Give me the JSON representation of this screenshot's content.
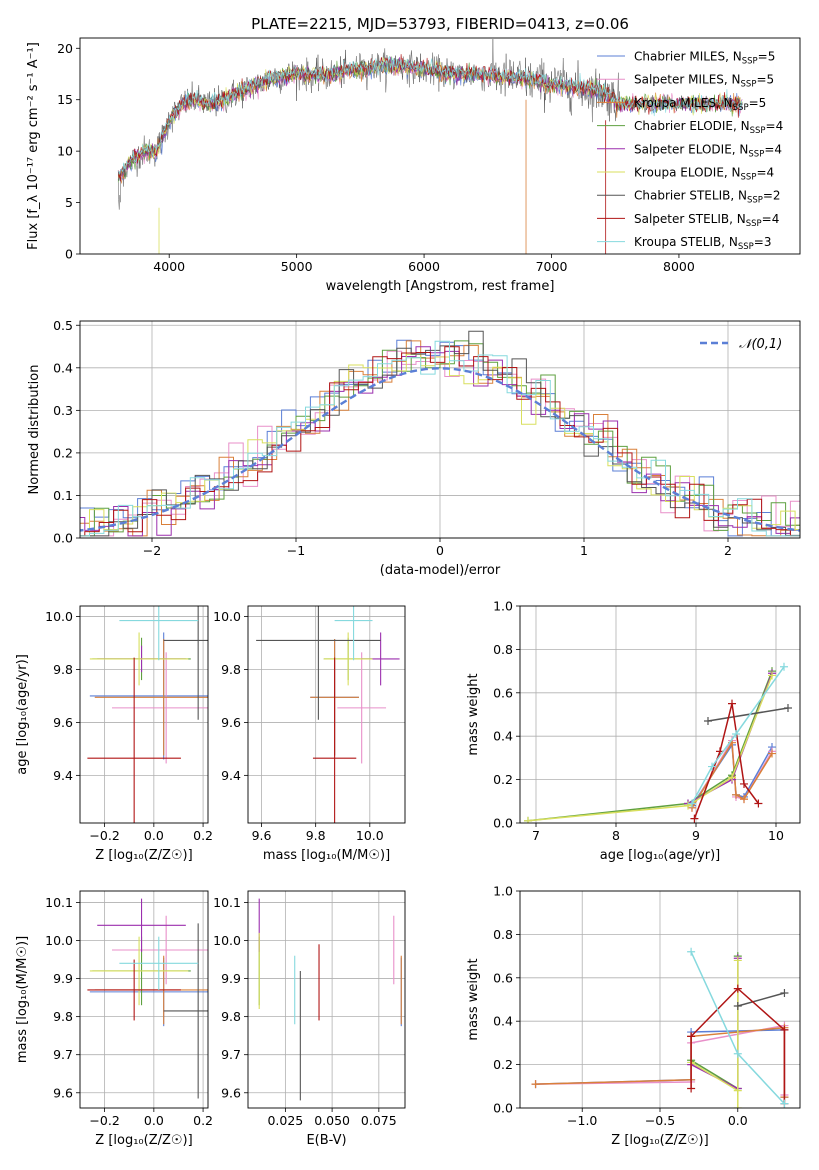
{
  "figure_title": "PLATE=2215, MJD=53793, FIBERID=0413, z=0.06",
  "colors": {
    "Chabrier MILES": "#5b7fd6",
    "Salpeter MILES": "#e88fc9",
    "Kroupa MILES": "#d9803a",
    "Chabrier ELODIE": "#5fa040",
    "Salpeter ELODIE": "#9b2fae",
    "Kroupa ELODIE": "#d8df5e",
    "Chabrier STELIB": "#555555",
    "Salpeter STELIB": "#b01515",
    "Kroupa STELIB": "#86d9de",
    "gaussian": "#5b7fd6",
    "grid": "#b0b0b0"
  },
  "chart_data": [
    {
      "id": "spectrum",
      "type": "line",
      "title": "PLATE=2215, MJD=53793, FIBERID=0413, z=0.06",
      "xlabel": "wavelength [Angstrom, rest frame]",
      "ylabel": "Flux [f_λ 10⁻¹⁷ erg cm⁻² s⁻¹ A⁻¹]",
      "xlim": [
        3300,
        8950
      ],
      "ylim": [
        0,
        21
      ],
      "xticks": [
        4000,
        5000,
        6000,
        7000,
        8000
      ],
      "yticks": [
        0,
        5,
        10,
        15,
        20
      ],
      "grid": false,
      "legend_loc": "right",
      "continuum_x": [
        3600,
        3700,
        3800,
        3900,
        4000,
        4100,
        4200,
        4300,
        4400,
        4500,
        4600,
        4700,
        4800,
        4900,
        5000,
        5200,
        5400,
        5600,
        5800,
        6000,
        6200,
        6400,
        6600,
        6800,
        7000,
        7200,
        7400,
        7500
      ],
      "continuum_y": [
        7.5,
        9.0,
        10.0,
        10.0,
        13.0,
        14.5,
        15.0,
        14.5,
        14.8,
        15.5,
        16.0,
        16.5,
        17.0,
        17.3,
        17.5,
        17.3,
        17.8,
        18.2,
        18.3,
        18.0,
        17.5,
        17.5,
        17.2,
        17.0,
        16.5,
        16.2,
        15.8,
        15.0
      ],
      "series": [
        {
          "name": "Chabrier MILES",
          "nssp": 5
        },
        {
          "name": "Salpeter MILES",
          "nssp": 5
        },
        {
          "name": "Kroupa MILES",
          "nssp": 5
        },
        {
          "name": "Chabrier ELODIE",
          "nssp": 4
        },
        {
          "name": "Salpeter ELODIE",
          "nssp": 4
        },
        {
          "name": "Kroupa ELODIE",
          "nssp": 4
        },
        {
          "name": "Chabrier STELIB",
          "nssp": 2
        },
        {
          "name": "Salpeter STELIB",
          "nssp": 4
        },
        {
          "name": "Kroupa STELIB",
          "nssp": 3
        }
      ]
    },
    {
      "id": "residuals",
      "type": "line",
      "xlabel": "(data-model)/error",
      "ylabel": "Normed distribution",
      "xlim": [
        -2.5,
        2.5
      ],
      "ylim": [
        0,
        0.51
      ],
      "xticks": [
        -2,
        -1,
        0,
        1,
        2
      ],
      "yticks": [
        0.0,
        0.1,
        0.2,
        0.3,
        0.4,
        0.5
      ],
      "grid": true,
      "legend_loc": "top-right",
      "gaussian_label": "𝒩(0,1)",
      "gaussian": {
        "mu": 0,
        "sigma": 1
      }
    },
    {
      "id": "age_vs_Z",
      "type": "scatter",
      "xlabel": "Z [log₁₀(Z/Z☉)]",
      "ylabel": "age  [log₁₀(age/yr)]",
      "xlim": [
        -0.3,
        0.22
      ],
      "ylim": [
        9.22,
        10.04
      ],
      "xticks": [
        -0.2,
        0.0,
        0.2
      ],
      "yticks": [
        9.4,
        9.6,
        9.8,
        10.0
      ],
      "grid": true,
      "points": [
        {
          "series": "Chabrier MILES",
          "x": 0.04,
          "xerr": 0.3,
          "y": 9.7,
          "yerr": 0.24
        },
        {
          "series": "Salpeter MILES",
          "x": 0.05,
          "xerr": 0.22,
          "y": 9.655,
          "yerr": 0.21
        },
        {
          "series": "Kroupa MILES",
          "x": 0.04,
          "xerr": 0.28,
          "y": 9.695,
          "yerr": 0.22
        },
        {
          "series": "Chabrier ELODIE",
          "x": -0.05,
          "xerr": 0.2,
          "y": 9.84,
          "yerr": 0.08
        },
        {
          "series": "Salpeter ELODIE",
          "x": -0.05,
          "xerr": 0.18,
          "y": 9.84,
          "yerr": 0.05
        },
        {
          "series": "Kroupa ELODIE",
          "x": -0.06,
          "xerr": 0.2,
          "y": 9.84,
          "yerr": 0.1
        },
        {
          "series": "Chabrier STELIB",
          "x": 0.18,
          "xerr": 0.14,
          "y": 9.91,
          "yerr": 0.3
        },
        {
          "series": "Salpeter STELIB",
          "x": -0.08,
          "xerr": 0.19,
          "y": 9.465,
          "yerr": 0.38
        },
        {
          "series": "Kroupa STELIB",
          "x": 0.02,
          "xerr": 0.16,
          "y": 9.985,
          "yerr": 0.15
        }
      ]
    },
    {
      "id": "age_vs_mass",
      "type": "scatter",
      "xlabel": "mass [log₁₀(M/M☉)]",
      "ylabel": "",
      "xlim": [
        9.55,
        10.13
      ],
      "ylim": [
        9.22,
        10.04
      ],
      "xticks": [
        9.6,
        9.8,
        10.0
      ],
      "yticks": [
        9.4,
        9.6,
        9.8,
        10.0
      ],
      "grid": true,
      "points": [
        {
          "series": "Chabrier MILES",
          "x": 9.87,
          "xerr": 0.09,
          "y": 9.695,
          "yerr": 0.22
        },
        {
          "series": "Salpeter MILES",
          "x": 9.97,
          "xerr": 0.09,
          "y": 9.655,
          "yerr": 0.21
        },
        {
          "series": "Kroupa MILES",
          "x": 9.87,
          "xerr": 0.09,
          "y": 9.695,
          "yerr": 0.22
        },
        {
          "series": "Chabrier ELODIE",
          "x": 9.92,
          "xerr": 0.09,
          "y": 9.84,
          "yerr": 0.08
        },
        {
          "series": "Salpeter ELODIE",
          "x": 10.04,
          "xerr": 0.07,
          "y": 9.84,
          "yerr": 0.1
        },
        {
          "series": "Kroupa ELODIE",
          "x": 9.92,
          "xerr": 0.09,
          "y": 9.84,
          "yerr": 0.1
        },
        {
          "series": "Chabrier STELIB",
          "x": 9.81,
          "xerr": 0.23,
          "y": 9.91,
          "yerr": 0.3
        },
        {
          "series": "Salpeter STELIB",
          "x": 9.87,
          "xerr": 0.08,
          "y": 9.465,
          "yerr": 0.38
        },
        {
          "series": "Kroupa STELIB",
          "x": 9.94,
          "xerr": 0.07,
          "y": 9.985,
          "yerr": 0.15
        }
      ]
    },
    {
      "id": "weight_vs_age",
      "type": "line",
      "xlabel": "age  [log₁₀(age/yr)]",
      "ylabel": "mass weight",
      "xlim": [
        6.8,
        10.3
      ],
      "ylim": [
        0,
        1.0
      ],
      "xticks": [
        7,
        8,
        9,
        10
      ],
      "yticks": [
        0.0,
        0.2,
        0.4,
        0.6,
        0.8,
        1.0
      ],
      "grid": true,
      "series": [
        {
          "name": "Chabrier MILES",
          "x": [
            8.95,
            9.45,
            9.5,
            9.6,
            9.95
          ],
          "y": [
            0.08,
            0.36,
            0.13,
            0.12,
            0.35
          ]
        },
        {
          "name": "Salpeter MILES",
          "x": [
            8.95,
            9.45,
            9.5,
            9.6,
            9.95
          ],
          "y": [
            0.07,
            0.38,
            0.12,
            0.11,
            0.33
          ]
        },
        {
          "name": "Kroupa MILES",
          "x": [
            8.95,
            9.45,
            9.5,
            9.6,
            9.95
          ],
          "y": [
            0.07,
            0.37,
            0.13,
            0.11,
            0.32
          ]
        },
        {
          "name": "Chabrier ELODIE",
          "x": [
            6.9,
            8.9,
            9.45,
            9.95
          ],
          "y": [
            0.01,
            0.09,
            0.22,
            0.7
          ]
        },
        {
          "name": "Salpeter ELODIE",
          "x": [
            8.9,
            9.45,
            9.95
          ],
          "y": [
            0.09,
            0.2,
            0.69
          ]
        },
        {
          "name": "Kroupa ELODIE",
          "x": [
            6.9,
            8.9,
            9.45,
            9.95
          ],
          "y": [
            0.01,
            0.08,
            0.21,
            0.68
          ]
        },
        {
          "name": "Chabrier STELIB",
          "x": [
            9.15,
            10.15
          ],
          "y": [
            0.47,
            0.53
          ]
        },
        {
          "name": "Salpeter STELIB",
          "x": [
            8.98,
            9.3,
            9.45,
            9.6,
            9.78
          ],
          "y": [
            0.02,
            0.33,
            0.55,
            0.18,
            0.09
          ]
        },
        {
          "name": "Kroupa STELIB",
          "x": [
            8.95,
            9.2,
            9.5,
            10.1
          ],
          "y": [
            0.09,
            0.26,
            0.41,
            0.72
          ]
        }
      ]
    },
    {
      "id": "mass_vs_Z",
      "type": "scatter",
      "xlabel": "Z [log₁₀(Z/Z☉)]",
      "ylabel": "mass [log₁₀(M/M☉)]",
      "xlim": [
        -0.3,
        0.22
      ],
      "ylim": [
        9.56,
        10.13
      ],
      "xticks": [
        -0.2,
        0.0,
        0.2
      ],
      "yticks": [
        9.6,
        9.7,
        9.8,
        9.9,
        10.0,
        10.1
      ],
      "grid": true,
      "points": [
        {
          "series": "Chabrier MILES",
          "x": 0.04,
          "xerr": 0.3,
          "y": 9.865,
          "yerr": 0.09
        },
        {
          "series": "Salpeter MILES",
          "x": 0.05,
          "xerr": 0.22,
          "y": 9.975,
          "yerr": 0.09
        },
        {
          "series": "Kroupa MILES",
          "x": 0.04,
          "xerr": 0.28,
          "y": 9.87,
          "yerr": 0.09
        },
        {
          "series": "Chabrier ELODIE",
          "x": -0.05,
          "xerr": 0.2,
          "y": 9.92,
          "yerr": 0.09
        },
        {
          "series": "Salpeter ELODIE",
          "x": -0.05,
          "xerr": 0.18,
          "y": 10.04,
          "yerr": 0.07
        },
        {
          "series": "Kroupa ELODIE",
          "x": -0.06,
          "xerr": 0.2,
          "y": 9.92,
          "yerr": 0.09
        },
        {
          "series": "Chabrier STELIB",
          "x": 0.18,
          "xerr": 0.14,
          "y": 9.815,
          "yerr": 0.23
        },
        {
          "series": "Salpeter STELIB",
          "x": -0.08,
          "xerr": 0.19,
          "y": 9.87,
          "yerr": 0.08
        },
        {
          "series": "Kroupa STELIB",
          "x": 0.02,
          "xerr": 0.16,
          "y": 9.94,
          "yerr": 0.07
        }
      ]
    },
    {
      "id": "mass_vs_ebv",
      "type": "scatter",
      "xlabel": "E(B-V)",
      "ylabel": "",
      "xlim": [
        0.005,
        0.089
      ],
      "ylim": [
        9.56,
        10.13
      ],
      "xticks": [
        0.025,
        0.05,
        0.075
      ],
      "xtick_labels": [
        "0.025",
        "0.050",
        "0.075"
      ],
      "yticks": [
        9.6,
        9.7,
        9.8,
        9.9,
        10.0,
        10.1
      ],
      "grid": true,
      "points": [
        {
          "series": "Chabrier MILES",
          "x": 0.087,
          "y": 9.865,
          "yerr": 0.09
        },
        {
          "series": "Salpeter MILES",
          "x": 0.083,
          "y": 9.975,
          "yerr": 0.09
        },
        {
          "series": "Kroupa MILES",
          "x": 0.087,
          "y": 9.87,
          "yerr": 0.09
        },
        {
          "series": "Chabrier ELODIE",
          "x": 0.011,
          "y": 9.92,
          "yerr": 0.09
        },
        {
          "series": "Salpeter ELODIE",
          "x": 0.011,
          "y": 10.04,
          "yerr": 0.07
        },
        {
          "series": "Kroupa ELODIE",
          "x": 0.011,
          "y": 9.92,
          "yerr": 0.1
        },
        {
          "series": "Chabrier STELIB",
          "x": 0.033,
          "y": 9.75,
          "yerr": 0.17
        },
        {
          "series": "Salpeter STELIB",
          "x": 0.043,
          "y": 9.89,
          "yerr": 0.1
        },
        {
          "series": "Kroupa STELIB",
          "x": 0.03,
          "y": 9.87,
          "yerr": 0.09
        }
      ]
    },
    {
      "id": "weight_vs_Z",
      "type": "line",
      "xlabel": "Z [log₁₀(Z/Z☉)]",
      "ylabel": "mass weight",
      "xlim": [
        -1.4,
        0.4
      ],
      "ylim": [
        0,
        1.0
      ],
      "xticks": [
        -1.0,
        -0.5,
        0.0
      ],
      "yticks": [
        0.0,
        0.2,
        0.4,
        0.6,
        0.8,
        1.0
      ],
      "grid": true,
      "series": [
        {
          "name": "Chabrier MILES",
          "x": [
            -1.3,
            -0.3,
            -0.3,
            0.3,
            0.3
          ],
          "y": [
            0.11,
            0.13,
            0.35,
            0.36,
            0.05
          ]
        },
        {
          "name": "Salpeter MILES",
          "x": [
            -1.3,
            -0.3,
            -0.3,
            0.3,
            0.3
          ],
          "y": [
            0.11,
            0.12,
            0.3,
            0.38,
            0.06
          ]
        },
        {
          "name": "Kroupa MILES",
          "x": [
            -1.3,
            -0.3,
            -0.3,
            0.3,
            0.3
          ],
          "y": [
            0.11,
            0.13,
            0.33,
            0.37,
            0.05
          ]
        },
        {
          "name": "Chabrier ELODIE",
          "x": [
            -0.3,
            0.0,
            0.0
          ],
          "y": [
            0.22,
            0.09,
            0.7
          ]
        },
        {
          "name": "Salpeter ELODIE",
          "x": [
            -0.3,
            0.0,
            0.0
          ],
          "y": [
            0.2,
            0.09,
            0.69
          ]
        },
        {
          "name": "Kroupa ELODIE",
          "x": [
            -0.3,
            0.0,
            0.0,
            0.0
          ],
          "y": [
            0.21,
            0.08,
            0.68,
            0.0
          ]
        },
        {
          "name": "Chabrier STELIB",
          "x": [
            0.0,
            0.3
          ],
          "y": [
            0.47,
            0.53
          ]
        },
        {
          "name": "Salpeter STELIB",
          "x": [
            -0.3,
            -0.3,
            0.0,
            0.3,
            0.3
          ],
          "y": [
            0.09,
            0.33,
            0.55,
            0.36,
            0.02
          ]
        },
        {
          "name": "Kroupa STELIB",
          "x": [
            -0.3,
            0.0,
            0.3
          ],
          "y": [
            0.72,
            0.25,
            0.02
          ]
        }
      ]
    }
  ]
}
